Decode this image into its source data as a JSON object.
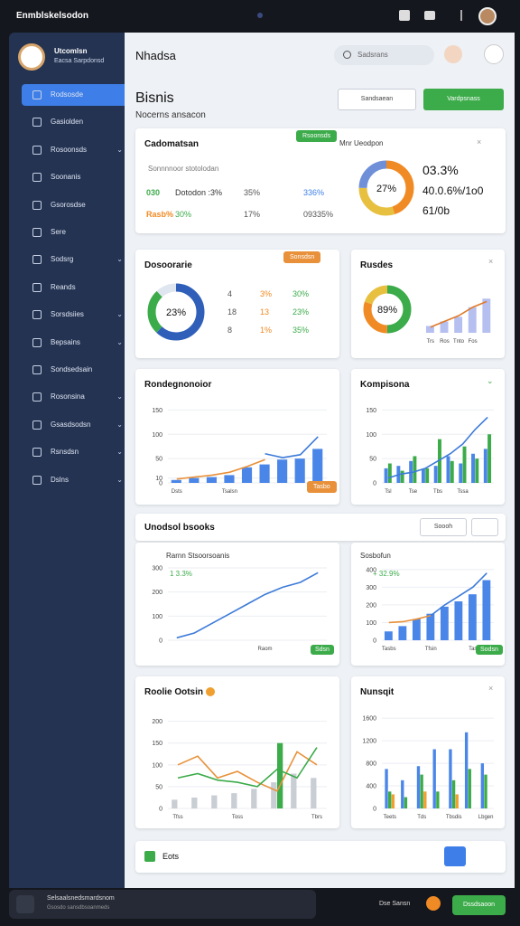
{
  "top_bar": {
    "title": "Enmblskelsodon"
  },
  "sidebar": {
    "profile": {
      "name": "Utcomlsn",
      "sub": "Eacsa Sarpdonsd"
    },
    "items": [
      {
        "label": "Rodsosde",
        "active": true,
        "expandable": false
      },
      {
        "label": "Gasiolden",
        "active": false,
        "expandable": false
      },
      {
        "label": "Rosoonsds",
        "active": false,
        "expandable": true
      },
      {
        "label": "Soonanis",
        "active": false,
        "expandable": false
      },
      {
        "label": "Gsorosdse",
        "active": false,
        "expandable": false
      },
      {
        "label": "Sere",
        "active": false,
        "expandable": false
      },
      {
        "label": "Sodsrg",
        "active": false,
        "expandable": true
      },
      {
        "label": "Reands",
        "active": false,
        "expandable": false
      },
      {
        "label": "Sorsdsiies",
        "active": false,
        "expandable": true
      },
      {
        "label": "Bepsains",
        "active": false,
        "expandable": true
      },
      {
        "label": "Sondsedsain",
        "active": false,
        "expandable": false
      },
      {
        "label": "Rosonsina",
        "active": false,
        "expandable": true
      },
      {
        "label": "Gsasdsodsn",
        "active": false,
        "expandable": true
      },
      {
        "label": "Rsnsdsn",
        "active": false,
        "expandable": true
      },
      {
        "label": "Dslns",
        "active": false,
        "expandable": true
      }
    ]
  },
  "header": {
    "title": "Nhadsa",
    "search": "Sadsrans"
  },
  "page": {
    "title": "Bisnis",
    "subtitle": "Nocerns ansacon",
    "button_secondary": "Sandsaean",
    "button_primary": "Vardpsnass"
  },
  "cards": {
    "summary": {
      "title": "Cadomatsan",
      "badge": "Rsoonsds",
      "note": "Sonnnnoor stotolodan",
      "rows": [
        [
          "030",
          "Dotodon :3%",
          "35%",
          "336%"
        ],
        [
          "Rasb%",
          "30%",
          "17%",
          "09335%"
        ]
      ],
      "side_title": "Mnr Ueodpon",
      "stats": [
        "03.3%",
        "40.0.6%/1o0",
        "61/0b"
      ]
    },
    "distribution": {
      "title": "Dosoorarie",
      "badge": "Sonsdsn",
      "rows": [
        [
          "4",
          "3%",
          "30%"
        ],
        [
          "18",
          "13",
          "23%"
        ],
        [
          "8",
          "1%",
          "35%"
        ]
      ]
    },
    "results": {
      "title": "Rusdes"
    },
    "trend": {
      "title": "Rondegnonoior",
      "badge": "Tasbo"
    },
    "comparison": {
      "title": "Kompisona"
    },
    "section": {
      "title": "Unodsol bsooks",
      "button": "Soooh"
    },
    "growth": {
      "title": "Rarnn Stsoorsoanis",
      "delta": "1 3.3%",
      "badge": "Sdsn"
    },
    "forecast": {
      "title": "Sosbofun",
      "delta": "+ 32.9%",
      "badge": "Sodsn"
    },
    "roles": {
      "title": "Roolie Ootsin"
    },
    "monthly": {
      "title": "Nunsqit"
    },
    "footer": {
      "title": "Eots"
    }
  },
  "bottom_bar": {
    "line1": "Selsaalsnedsmardsnom",
    "line2": "Gsosdo sansdbsoanmeds",
    "link": "Dse Sansn",
    "button": "Dssdsaoon"
  },
  "chart_data": [
    {
      "type": "donut",
      "label": "27%",
      "values": [
        45,
        30,
        25
      ],
      "colors": [
        "#f08a24",
        "#e8c040",
        "#6f8fd8"
      ]
    },
    {
      "type": "donut",
      "label": "23%",
      "values": [
        62,
        26,
        12
      ],
      "colors": [
        "#2f5fb8",
        "#3cab4a",
        "#dfe6ef"
      ]
    },
    {
      "type": "donut",
      "label": "89%",
      "values": [
        50,
        30,
        20
      ],
      "colors": [
        "#3cab4a",
        "#f08a24",
        "#e8c040"
      ]
    },
    {
      "type": "combo",
      "ylim": [
        0,
        70
      ],
      "categories": [
        "Trs",
        "Ros",
        "Tnto",
        "Fos",
        null
      ],
      "series": [
        {
          "type": "bar",
          "color": "#b5bff0",
          "values": [
            12,
            20,
            28,
            45,
            60
          ]
        },
        {
          "type": "line",
          "color": "#e07a2a",
          "values": [
            10,
            20,
            30,
            45,
            55
          ]
        }
      ]
    },
    {
      "type": "combo",
      "ylim": [
        0,
        160
      ],
      "yticks": [
        0,
        10,
        50,
        100,
        150
      ],
      "categories": [
        "Dsts",
        null,
        null,
        "Tsalsn",
        null,
        null,
        null,
        null,
        null
      ],
      "series": [
        {
          "type": "bar",
          "color": "#4a86e8",
          "values": [
            6,
            10,
            12,
            16,
            32,
            38,
            48,
            50,
            70
          ]
        },
        {
          "type": "line",
          "color": "#e8913a",
          "values": [
            8,
            12,
            16,
            22,
            34,
            48,
            null,
            null,
            null
          ]
        },
        {
          "type": "line",
          "color": "#3d7bd9",
          "values": [
            null,
            null,
            null,
            null,
            null,
            60,
            52,
            58,
            95
          ]
        }
      ]
    },
    {
      "type": "combo",
      "ylim": [
        0,
        160
      ],
      "yticks": [
        0,
        50,
        100,
        150
      ],
      "categories": [
        "Tsl",
        null,
        "Tse",
        null,
        "Tbs",
        null,
        "Tssa",
        null,
        null
      ],
      "series": [
        {
          "type": "bar",
          "color": "#4a86e8",
          "values": [
            30,
            35,
            45,
            28,
            35,
            55,
            40,
            60,
            70
          ]
        },
        {
          "type": "bar",
          "color": "#3cab4a",
          "values": [
            40,
            25,
            55,
            30,
            90,
            45,
            75,
            50,
            100
          ]
        },
        {
          "type": "line",
          "color": "#3d7bd9",
          "values": [
            10,
            18,
            22,
            30,
            45,
            60,
            80,
            110,
            135
          ]
        }
      ]
    },
    {
      "type": "combo",
      "ylim": [
        0,
        330
      ],
      "yticks": [
        0,
        100,
        200,
        300
      ],
      "categories": [
        null,
        null,
        null,
        null,
        null,
        "Raom",
        null,
        null,
        null
      ],
      "series": [
        {
          "type": "line",
          "color": "#3d7bd9",
          "values": [
            10,
            30,
            70,
            110,
            150,
            190,
            220,
            240,
            280
          ]
        }
      ]
    },
    {
      "type": "combo",
      "ylim": [
        0,
        440
      ],
      "yticks": [
        0,
        100,
        200,
        300,
        400
      ],
      "categories": [
        "Tasbs",
        null,
        null,
        "Tfsin",
        null,
        null,
        "Tas",
        null
      ],
      "series": [
        {
          "type": "bar",
          "color": "#4a86e8",
          "values": [
            50,
            80,
            120,
            150,
            190,
            220,
            260,
            340
          ]
        },
        {
          "type": "line",
          "color": "#e8913a",
          "values": [
            100,
            105,
            120,
            140,
            null,
            null,
            null,
            null
          ]
        },
        {
          "type": "line",
          "color": "#3d7bd9",
          "values": [
            null,
            null,
            null,
            140,
            200,
            250,
            300,
            380
          ]
        }
      ]
    },
    {
      "type": "combo",
      "ylim": [
        0,
        220
      ],
      "yticks": [
        0,
        50,
        100,
        150,
        200
      ],
      "categories": [
        "Tfss",
        null,
        null,
        "Toss",
        null,
        null,
        null,
        "Tbrs"
      ],
      "series": [
        {
          "type": "bar",
          "color": "#c9cdd4",
          "values": [
            20,
            25,
            30,
            35,
            45,
            60,
            80,
            70
          ]
        },
        {
          "type": "bar",
          "color": "#3cab4a",
          "values": [
            null,
            null,
            null,
            null,
            null,
            150,
            null,
            null
          ]
        },
        {
          "type": "line",
          "color": "#e8913a",
          "values": [
            100,
            120,
            70,
            85,
            60,
            40,
            130,
            100
          ]
        },
        {
          "type": "line",
          "color": "#3cab4a",
          "values": [
            70,
            80,
            65,
            60,
            50,
            90,
            70,
            140
          ]
        }
      ]
    },
    {
      "type": "combo",
      "ylim": [
        0,
        1700
      ],
      "yticks": [
        0,
        400,
        800,
        1200,
        1600
      ],
      "categories": [
        "Teets",
        null,
        "Tds",
        null,
        "Tbsdis",
        null,
        "Lbgen"
      ],
      "series": [
        {
          "type": "bar",
          "color": "#4a86e8",
          "values": [
            700,
            500,
            750,
            1050,
            1050,
            1350,
            800
          ]
        },
        {
          "type": "bar",
          "color": "#3cab4a",
          "values": [
            300,
            200,
            600,
            300,
            500,
            700,
            600
          ]
        },
        {
          "type": "bar",
          "color": "#f0a030",
          "values": [
            250,
            0,
            300,
            0,
            250,
            0,
            0
          ]
        }
      ]
    }
  ]
}
